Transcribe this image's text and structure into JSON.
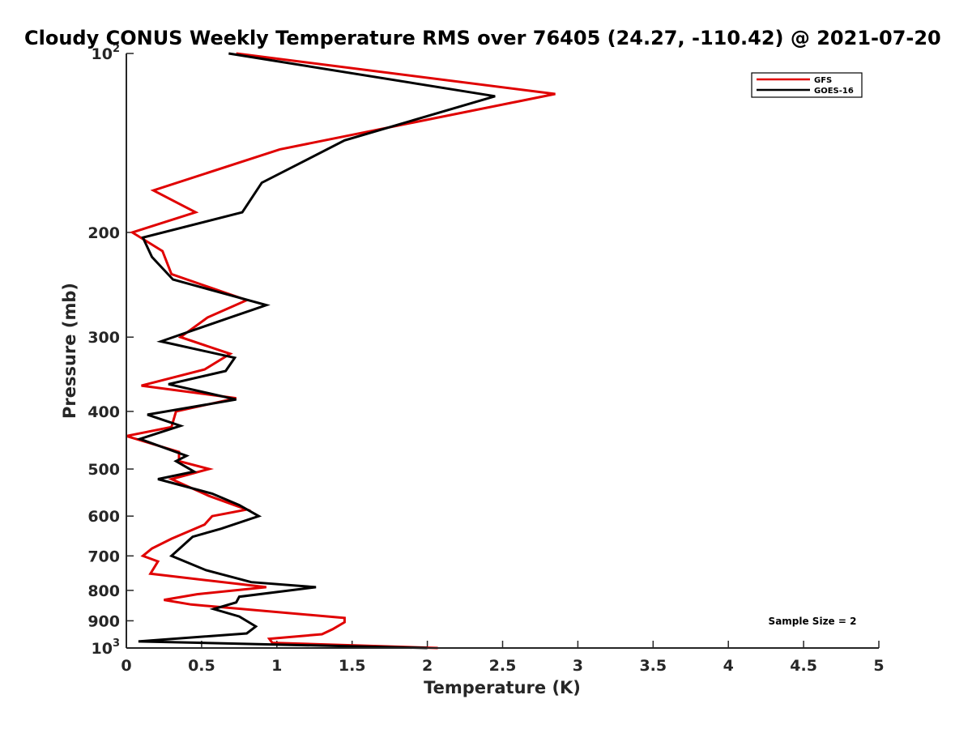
{
  "chart_data": {
    "type": "line",
    "title": "Cloudy CONUS Weekly Temperature RMS over 76405 (24.27, -110.42) @ 2021-07-20",
    "xlabel": "Temperature (K)",
    "ylabel": "Pressure (mb)",
    "xlim": [
      0,
      5
    ],
    "ylim": [
      100,
      1000
    ],
    "yscale": "log",
    "yreverse": true,
    "grid": false,
    "legend_position": "top-right",
    "x_ticks": [
      {
        "value": 0,
        "label": "0"
      },
      {
        "value": 0.5,
        "label": "0.5"
      },
      {
        "value": 1,
        "label": "1"
      },
      {
        "value": 1.5,
        "label": "1.5"
      },
      {
        "value": 2,
        "label": "2"
      },
      {
        "value": 2.5,
        "label": "2.5"
      },
      {
        "value": 3,
        "label": "3"
      },
      {
        "value": 3.5,
        "label": "3.5"
      },
      {
        "value": 4,
        "label": "4"
      },
      {
        "value": 4.5,
        "label": "4.5"
      },
      {
        "value": 5,
        "label": "5"
      }
    ],
    "y_ticks": [
      {
        "value": 100,
        "label": "10",
        "sup": "2"
      },
      {
        "value": 200,
        "label": "200",
        "sup": ""
      },
      {
        "value": 300,
        "label": "300",
        "sup": ""
      },
      {
        "value": 400,
        "label": "400",
        "sup": ""
      },
      {
        "value": 500,
        "label": "500",
        "sup": ""
      },
      {
        "value": 600,
        "label": "600",
        "sup": ""
      },
      {
        "value": 700,
        "label": "700",
        "sup": ""
      },
      {
        "value": 800,
        "label": "800",
        "sup": ""
      },
      {
        "value": 900,
        "label": "900",
        "sup": ""
      },
      {
        "value": 1000,
        "label": "10",
        "sup": "3"
      }
    ],
    "series": [
      {
        "name": "GFS",
        "color": "#e00000",
        "points": [
          [
            0.73,
            100
          ],
          [
            2.85,
            117
          ],
          [
            1.02,
            145
          ],
          [
            0.18,
            170
          ],
          [
            0.46,
            185
          ],
          [
            0.04,
            200
          ],
          [
            0.24,
            215
          ],
          [
            0.3,
            235
          ],
          [
            0.8,
            260
          ],
          [
            0.54,
            278
          ],
          [
            0.36,
            300
          ],
          [
            0.69,
            320
          ],
          [
            0.52,
            340
          ],
          [
            0.1,
            362
          ],
          [
            0.73,
            380
          ],
          [
            0.33,
            400
          ],
          [
            0.3,
            425
          ],
          [
            0.0,
            440
          ],
          [
            0.35,
            468
          ],
          [
            0.35,
            485
          ],
          [
            0.55,
            500
          ],
          [
            0.3,
            520
          ],
          [
            0.55,
            555
          ],
          [
            0.8,
            585
          ],
          [
            0.57,
            600
          ],
          [
            0.52,
            620
          ],
          [
            0.3,
            655
          ],
          [
            0.17,
            680
          ],
          [
            0.11,
            700
          ],
          [
            0.21,
            715
          ],
          [
            0.16,
            750
          ],
          [
            0.93,
            790
          ],
          [
            0.47,
            812
          ],
          [
            0.25,
            830
          ],
          [
            0.43,
            845
          ],
          [
            1.45,
            890
          ],
          [
            1.45,
            905
          ],
          [
            1.37,
            930
          ],
          [
            1.3,
            948
          ],
          [
            0.95,
            965
          ],
          [
            0.97,
            980
          ],
          [
            2.07,
            1000
          ]
        ]
      },
      {
        "name": "GOES-16",
        "color": "#000000",
        "points": [
          [
            0.68,
            100
          ],
          [
            2.45,
            118
          ],
          [
            1.45,
            140
          ],
          [
            0.9,
            165
          ],
          [
            0.77,
            185
          ],
          [
            0.11,
            204
          ],
          [
            0.17,
            220
          ],
          [
            0.31,
            240
          ],
          [
            0.93,
            265
          ],
          [
            0.69,
            278
          ],
          [
            0.23,
            305
          ],
          [
            0.72,
            325
          ],
          [
            0.66,
            342
          ],
          [
            0.28,
            360
          ],
          [
            0.73,
            382
          ],
          [
            0.14,
            405
          ],
          [
            0.36,
            423
          ],
          [
            0.09,
            445
          ],
          [
            0.4,
            475
          ],
          [
            0.33,
            485
          ],
          [
            0.45,
            505
          ],
          [
            0.21,
            520
          ],
          [
            0.57,
            550
          ],
          [
            0.75,
            575
          ],
          [
            0.88,
            600
          ],
          [
            0.63,
            630
          ],
          [
            0.44,
            650
          ],
          [
            0.3,
            700
          ],
          [
            0.53,
            740
          ],
          [
            0.83,
            775
          ],
          [
            1.26,
            790
          ],
          [
            0.75,
            820
          ],
          [
            0.73,
            838
          ],
          [
            0.58,
            860
          ],
          [
            0.75,
            885
          ],
          [
            0.86,
            920
          ],
          [
            0.8,
            945
          ],
          [
            0.08,
            975
          ],
          [
            2.0,
            1000
          ]
        ]
      }
    ],
    "annotations": [
      "Sample Size = 2"
    ]
  }
}
